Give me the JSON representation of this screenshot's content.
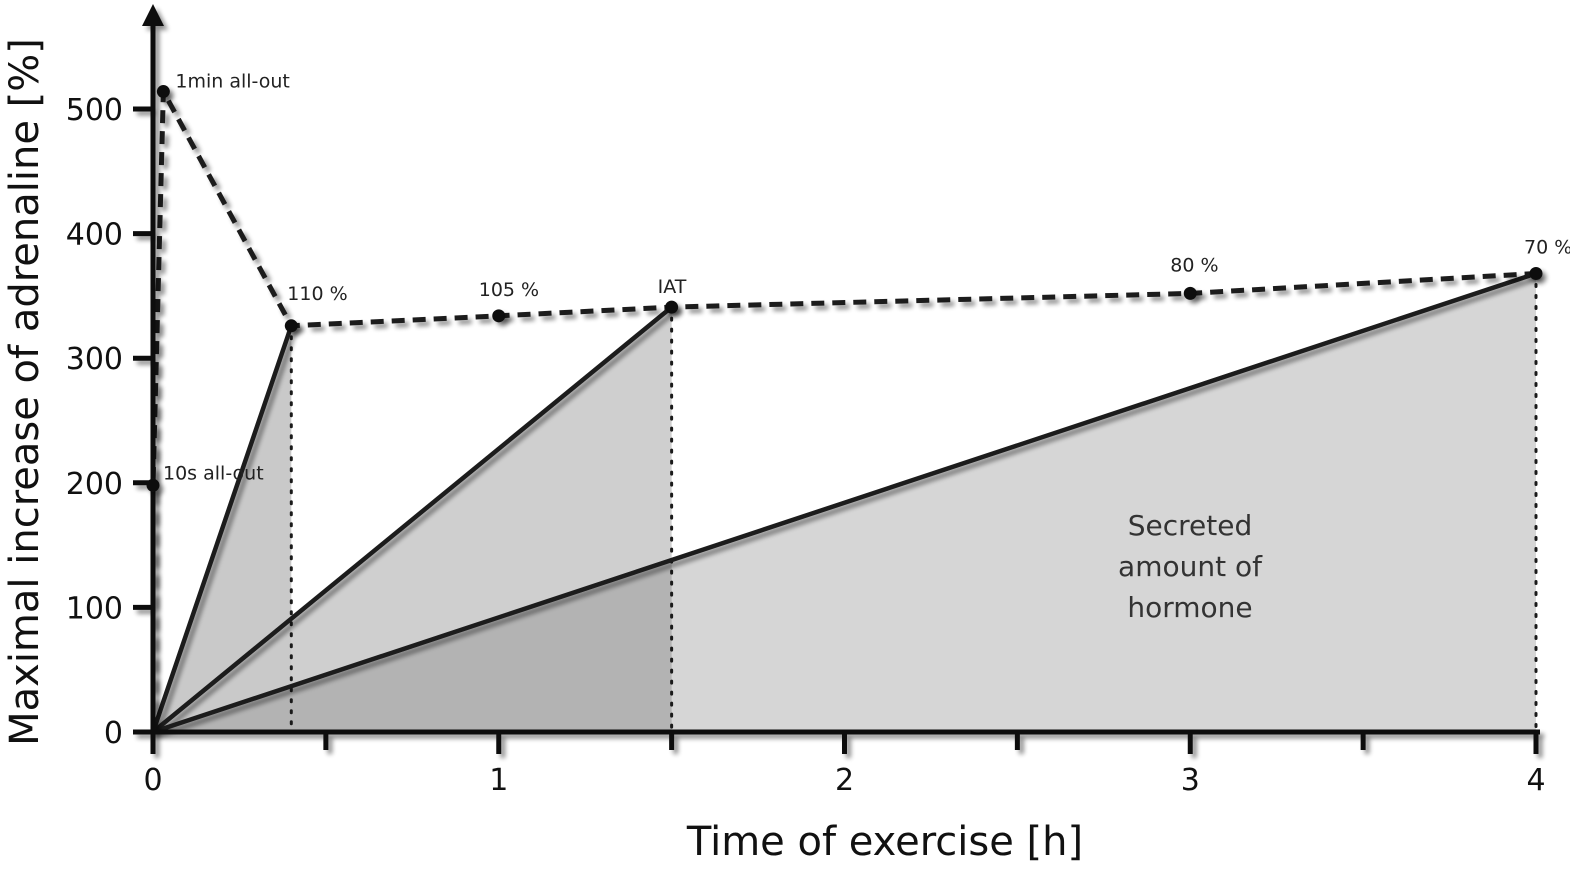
{
  "chart_data": {
    "type": "line",
    "xlabel": "Time of exercise [h]",
    "ylabel": "Maximal increase of adrenaline [%]",
    "xlim": [
      0,
      4
    ],
    "ylim": [
      0,
      550
    ],
    "x_ticks": [
      "0",
      "1",
      "2",
      "3",
      "4"
    ],
    "x_ticks_minor": [
      0.5,
      1.5,
      2.5,
      3.5
    ],
    "y_ticks": [
      "0",
      "100",
      "200",
      "300",
      "400",
      "500"
    ],
    "peak_curve": {
      "style": "dashed",
      "points": [
        {
          "x": 0.0,
          "y": 0,
          "label": ""
        },
        {
          "x": 0.0,
          "y": 198,
          "label": "10s all-out"
        },
        {
          "x": 0.03,
          "y": 514,
          "label": "1min all-out"
        },
        {
          "x": 0.4,
          "y": 326,
          "label": "110 %"
        },
        {
          "x": 1.0,
          "y": 334,
          "label": "105 %"
        },
        {
          "x": 1.5,
          "y": 341,
          "label": "IAT"
        },
        {
          "x": 3.0,
          "y": 352,
          "label": "80 %"
        },
        {
          "x": 4.0,
          "y": 368,
          "label": "70 %"
        }
      ]
    },
    "secretion_lines": [
      {
        "x_end": 0.4,
        "y_end": 326
      },
      {
        "x_end": 1.5,
        "y_end": 341
      },
      {
        "x_end": 4.0,
        "y_end": 368
      }
    ],
    "fill_colors": [
      "#c7c7c7",
      "#d3d3d3",
      "#b3b3b3"
    ],
    "area_label": [
      "Secreted",
      "amount of",
      "hormone"
    ]
  }
}
